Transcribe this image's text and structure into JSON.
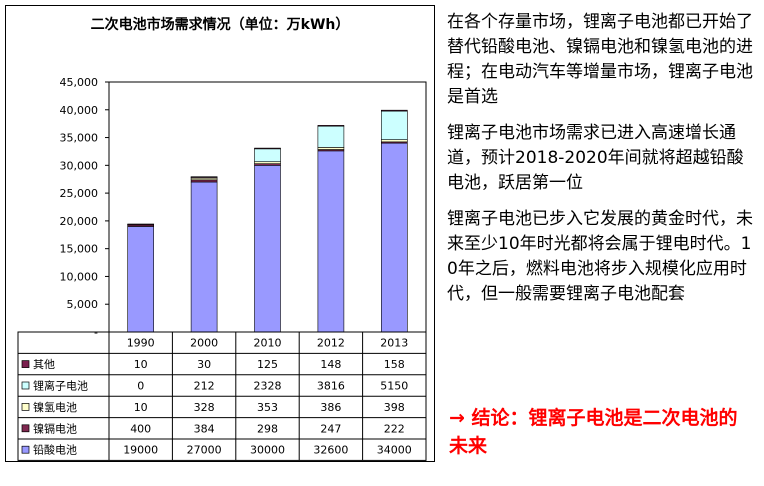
{
  "chart_data": {
    "type": "bar",
    "stacked": true,
    "title": "二次电池市场需求情况（单位：万kWh）",
    "categories": [
      "1990",
      "2000",
      "2010",
      "2012",
      "2013"
    ],
    "yticks": [
      "45,000",
      "40,000",
      "35,000",
      "30,000",
      "25,000",
      "20,000",
      "15,000",
      "10,000",
      "5,000",
      "-"
    ],
    "ylim": [
      0,
      45000
    ],
    "grid": false,
    "series": [
      {
        "name": "其他",
        "color": "#7a1f4e",
        "values": [
          "10",
          "30",
          "125",
          "148",
          "158"
        ]
      },
      {
        "name": "锂离子电池",
        "color": "#ccffff",
        "values": [
          "0",
          "212",
          "2328",
          "3816",
          "5150"
        ]
      },
      {
        "name": "镍氢电池",
        "color": "#ffffcc",
        "values": [
          "10",
          "328",
          "353",
          "386",
          "398"
        ]
      },
      {
        "name": "镍镉电池",
        "color": "#7f2850",
        "values": [
          "400",
          "384",
          "298",
          "247",
          "222"
        ]
      },
      {
        "name": "铅酸电池",
        "color": "#9999ff",
        "values": [
          "19000",
          "27000",
          "30000",
          "32600",
          "34000"
        ]
      }
    ],
    "stack_order_bottom_to_top": [
      "铅酸电池",
      "镍镉电池",
      "镍氢电池",
      "锂离子电池",
      "其他"
    ]
  },
  "text": {
    "paragraph1": "在各个存量市场，锂离子电池都已开始了替代铅酸电池、镍镉电池和镍氢电池的进程；在电动汽车等增量市场，锂离子电池是首选",
    "paragraph2": "锂离子电池市场需求已进入高速增长通道，预计2018-2020年间就将超越铅酸电池，跃居第一位",
    "paragraph3": "锂离子电池已步入它发展的黄金时代，未来至少10年时光都将会属于锂电时代。10年之后，燃料电池将步入规模化应用时代，但一般需要锂离子电池配套",
    "conclusion": "→ 结论：锂离子电池是二次电池的未来"
  },
  "colors": {
    "conclusion": "#ff0000",
    "plot_background": "#ffffff"
  }
}
